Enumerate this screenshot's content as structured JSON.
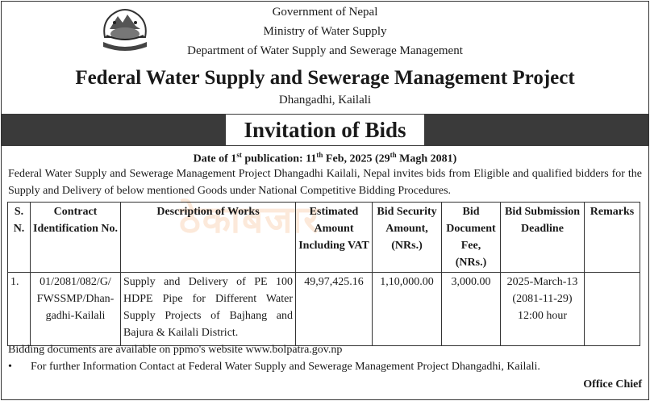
{
  "header": {
    "line1": "Government of Nepal",
    "line2": "Ministry of Water Supply",
    "line3": "Department of Water Supply and Sewerage Management",
    "project": "Federal Water Supply and Sewerage Management Project",
    "place": "Dhangadhi, Kailali"
  },
  "title": "Invitation of Bids",
  "date": {
    "prefix": "Date of 1",
    "prefix_sup": "st",
    "label_tail": " publication: 11",
    "day_sup": "th",
    "rest": " Feb, 2025 (29",
    "nep_sup": "th",
    "tail": " Magh 2081)"
  },
  "intro": "Federal Water Supply and Sewerage Management Project Dhangadhi Kailali, Nepal invites bids from Eligible and qualified bidders for the Supply and Delivery of below mentioned Goods under National Competitive Bidding Procedures.",
  "watermark": "ठेकाबजार",
  "table": {
    "headers": {
      "sn": "S. N.",
      "contract": "Contract Identification No.",
      "description": "Description of Works",
      "estimated": "Estimated Amount Including VAT",
      "security": "Bid Security Amount, (NRs.)",
      "fee": "Bid Document Fee, (NRs.)",
      "deadline": "Bid Submission Deadline",
      "remarks": "Remarks"
    },
    "rows": [
      {
        "sn": "1.",
        "contract": "01/2081/082/G/ FWSSMP/Dhan-gadhi-Kailali",
        "description": "Supply and Delivery of PE 100 HDPE Pipe for Different Water Supply Projects of Bajhang and Bajura & Kailali District.",
        "estimated": "49,97,425.16",
        "security": "1,10,000.00",
        "fee": "3,000.00",
        "deadline_line1": "2025-March-13",
        "deadline_line2": "(2081-11-29)",
        "deadline_line3": "12:00 hour",
        "remarks": ""
      }
    ]
  },
  "footer": {
    "documents": "Bidding documents are available on ppmo's website www.bolpatra.gov.np",
    "bullet": "•",
    "contact": "For further Information Contact at Federal Water Supply and Sewerage Management Project Dhangadhi, Kailali.",
    "signatory": "Office Chief"
  }
}
